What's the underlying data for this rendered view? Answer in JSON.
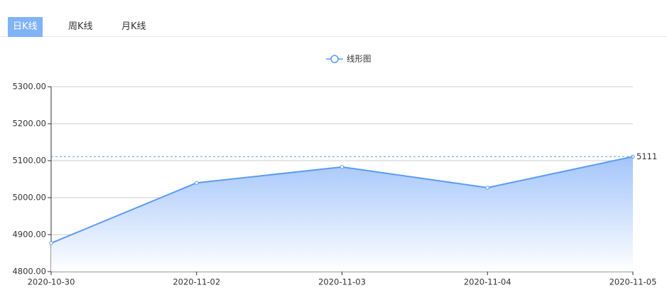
{
  "tabs": [
    {
      "label": "日K线",
      "active": true
    },
    {
      "label": "周K线",
      "active": false
    },
    {
      "label": "月K线",
      "active": false
    }
  ],
  "chart_data": {
    "type": "line",
    "area": true,
    "categories": [
      "2020-10-30",
      "2020-11-02",
      "2020-11-03",
      "2020-11-04",
      "2020-11-05"
    ],
    "series": [
      {
        "name": "线形图",
        "color": "#5b9cf0",
        "values": [
          4877,
          5040,
          5083,
          5027,
          5111
        ]
      }
    ],
    "ylim": [
      4800,
      5300
    ],
    "yticks": [
      {
        "value": 4800,
        "label": "4800.00"
      },
      {
        "value": 4900,
        "label": "4900.00"
      },
      {
        "value": 5000,
        "label": "5000.00"
      },
      {
        "value": 5100,
        "label": "5100.00"
      },
      {
        "value": 5200,
        "label": "5200.00"
      },
      {
        "value": 5300,
        "label": "5300.00"
      }
    ],
    "grid": true,
    "mark_line": {
      "value": 5111
    },
    "legend": "top"
  }
}
